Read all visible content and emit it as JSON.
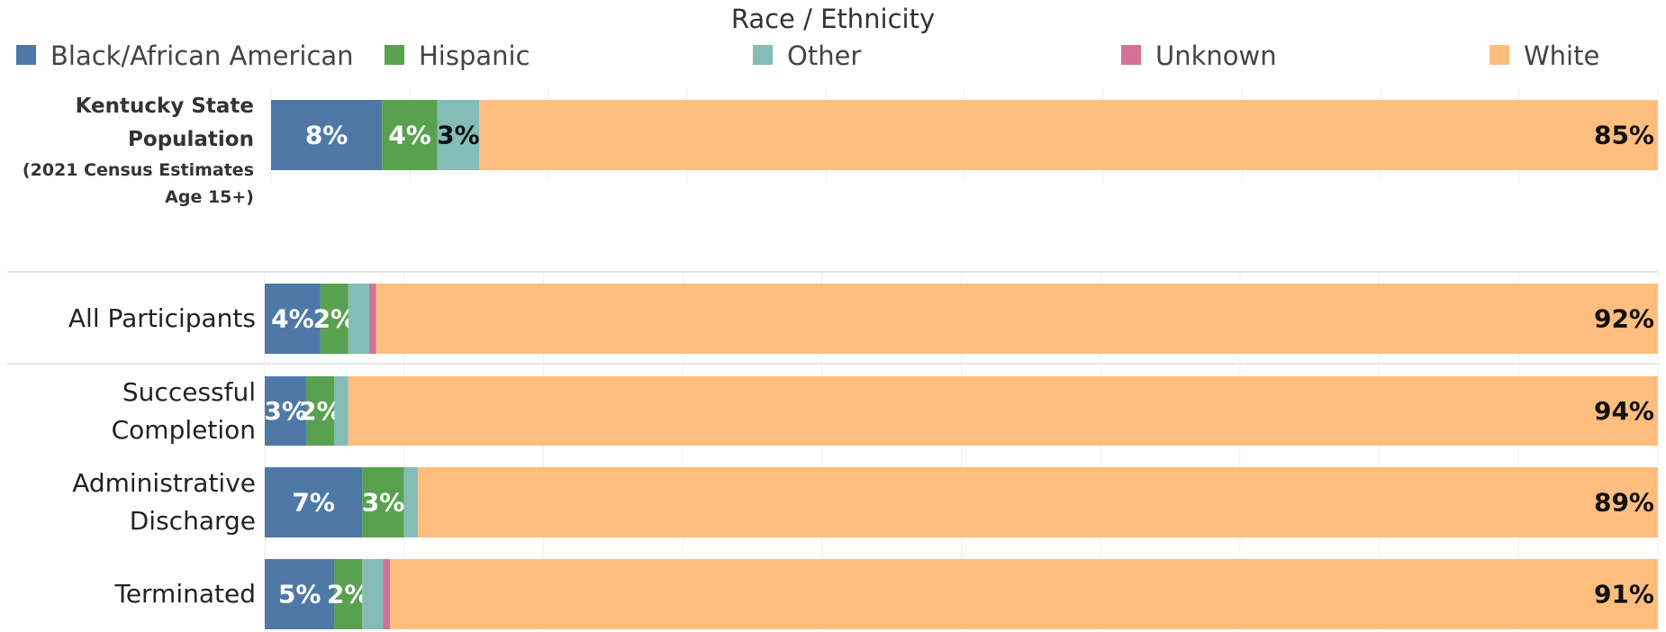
{
  "chart_data": [
    {
      "type": "stacked-bar-horizontal",
      "title": "Race / Ethnicity",
      "categories": [
        "Kentucky State Population"
      ],
      "category_note": "(2021 Census Estimates Age 15+)",
      "series": [
        {
          "name": "Black/African American",
          "color": "#4e79a7",
          "values": [
            8
          ],
          "value_labels": [
            "8%"
          ]
        },
        {
          "name": "Hispanic",
          "color": "#59a14f",
          "values": [
            4
          ],
          "value_labels": [
            "4%"
          ]
        },
        {
          "name": "Other",
          "color": "#86bcb6",
          "values": [
            3
          ],
          "value_labels": [
            "3%"
          ]
        },
        {
          "name": "Unknown",
          "color": "#d37295",
          "values": [
            null
          ],
          "value_labels": [
            null
          ]
        },
        {
          "name": "White",
          "color": "#ffbe7d",
          "values": [
            85
          ],
          "value_labels": [
            "85%"
          ]
        }
      ],
      "xlim": [
        0,
        100
      ],
      "xticks": [
        0,
        10,
        20,
        30,
        40,
        50,
        60,
        70,
        80,
        90,
        100
      ],
      "grid": true,
      "legend": "top"
    },
    {
      "type": "stacked-bar-horizontal",
      "categories": [
        "All Participants",
        "Successful Completion",
        "Administrative Discharge",
        "Terminated"
      ],
      "series": [
        {
          "name": "Black/African American",
          "color": "#4e79a7",
          "values": [
            4,
            3,
            7,
            5
          ],
          "value_labels": [
            "4%",
            "3%",
            "7%",
            "5%"
          ]
        },
        {
          "name": "Hispanic",
          "color": "#59a14f",
          "values": [
            2,
            2,
            3,
            2
          ],
          "value_labels": [
            "2%",
            "2%",
            "3%",
            "2%"
          ]
        },
        {
          "name": "Other",
          "color": "#86bcb6",
          "values": [
            1.5,
            1,
            1,
            1.5
          ],
          "value_labels": [
            null,
            null,
            null,
            null
          ]
        },
        {
          "name": "Unknown",
          "color": "#d37295",
          "values": [
            0.5,
            null,
            null,
            0.5
          ],
          "value_labels": [
            null,
            null,
            null,
            null
          ]
        },
        {
          "name": "White",
          "color": "#ffbe7d",
          "values": [
            92,
            94,
            89,
            91
          ],
          "value_labels": [
            "92%",
            "94%",
            "89%",
            "91%"
          ]
        }
      ],
      "xlim": [
        0,
        100
      ],
      "xticks": [
        0,
        10,
        20,
        30,
        40,
        50,
        60,
        70,
        80,
        90,
        100
      ],
      "grid": true
    }
  ]
}
